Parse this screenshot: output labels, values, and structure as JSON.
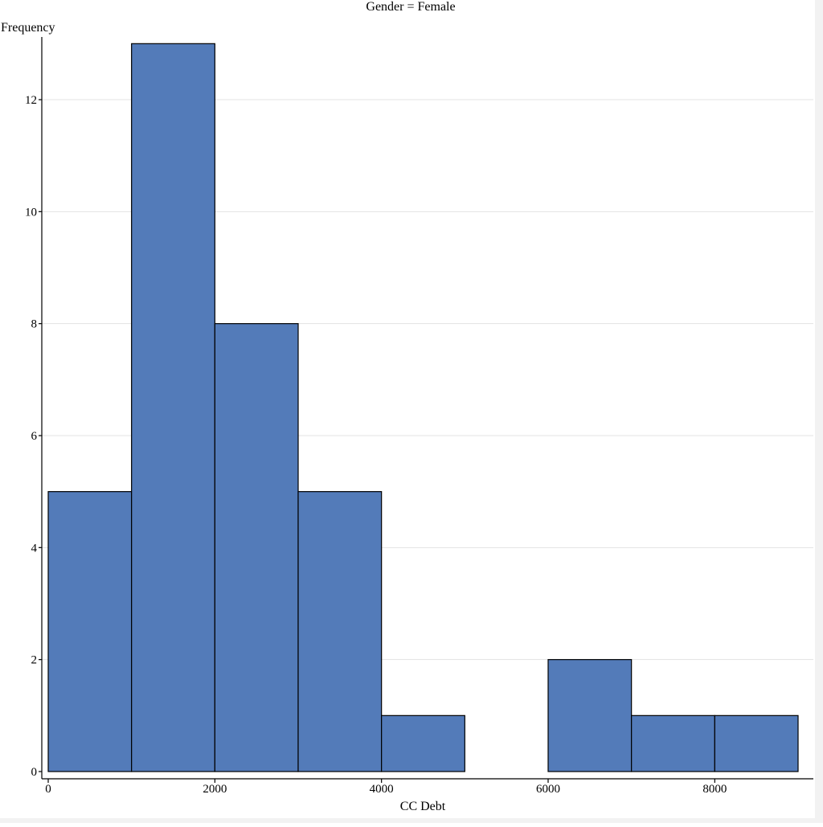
{
  "chart_data": {
    "type": "bar",
    "title": "Gender = Female",
    "xlabel": "CC Debt",
    "ylabel": "Frequency",
    "bins": [
      {
        "start": 0,
        "end": 1000,
        "count": 5
      },
      {
        "start": 1000,
        "end": 2000,
        "count": 13
      },
      {
        "start": 2000,
        "end": 3000,
        "count": 8
      },
      {
        "start": 3000,
        "end": 4000,
        "count": 5
      },
      {
        "start": 4000,
        "end": 5000,
        "count": 1
      },
      {
        "start": 5000,
        "end": 6000,
        "count": 0
      },
      {
        "start": 6000,
        "end": 7000,
        "count": 2
      },
      {
        "start": 7000,
        "end": 8000,
        "count": 1
      },
      {
        "start": 8000,
        "end": 9000,
        "count": 1
      }
    ],
    "xlim": [
      0,
      9000
    ],
    "ylim": [
      0,
      13
    ],
    "x_ticks": [
      0,
      2000,
      4000,
      6000,
      8000
    ],
    "y_ticks": [
      0,
      2,
      4,
      6,
      8,
      10,
      12
    ],
    "grid": "horizontal",
    "bar_color": "#537bb9",
    "bar_edge_color": "#000000"
  }
}
